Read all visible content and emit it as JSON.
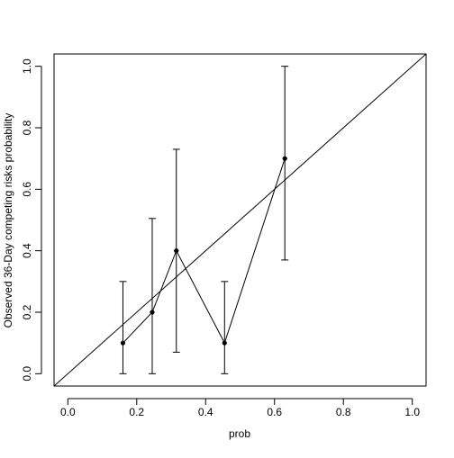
{
  "chart_data": {
    "type": "scatter",
    "title": "",
    "xlabel": "prob",
    "ylabel": "Observed 36-Day competing risks probability",
    "xlim": [
      -0.04,
      1.04
    ],
    "ylim": [
      -0.04,
      1.04
    ],
    "x_ticks": [
      0.0,
      0.2,
      0.4,
      0.6,
      0.8,
      1.0
    ],
    "x_tick_labels": [
      "0.0",
      "0.2",
      "0.4",
      "0.6",
      "0.8",
      "1.0"
    ],
    "y_ticks": [
      0.0,
      0.2,
      0.4,
      0.6,
      0.8,
      1.0
    ],
    "y_tick_labels": [
      "0.0",
      "0.2",
      "0.4",
      "0.6",
      "0.8",
      "1.0"
    ],
    "grid": false,
    "legend": "none",
    "reference_line": {
      "slope": 1,
      "intercept": 0
    },
    "points_connected": true,
    "points": [
      {
        "x": 0.16,
        "y": 0.1,
        "lower": 0.0,
        "upper": 0.3
      },
      {
        "x": 0.245,
        "y": 0.2,
        "lower": 0.0,
        "upper": 0.505
      },
      {
        "x": 0.315,
        "y": 0.4,
        "lower": 0.07,
        "upper": 0.73
      },
      {
        "x": 0.455,
        "y": 0.1,
        "lower": 0.0,
        "upper": 0.3
      },
      {
        "x": 0.63,
        "y": 0.7,
        "lower": 0.37,
        "upper": 1.0
      }
    ],
    "colors": {
      "line": "#000000",
      "point": "#000000",
      "background": "#ffffff"
    }
  }
}
